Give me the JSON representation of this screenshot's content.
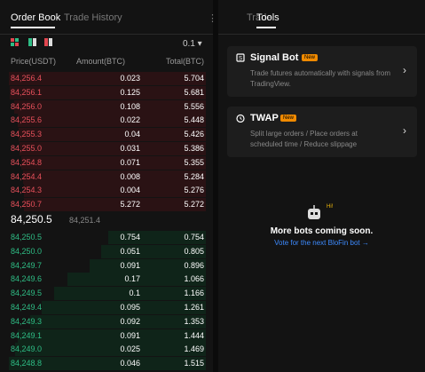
{
  "left": {
    "tabs": [
      "Order Book",
      "Trade History"
    ],
    "precision": "0.1",
    "headers": [
      "Price(USDT)",
      "Amount(BTC)",
      "Total(BTC)"
    ],
    "asks": [
      [
        "84,256.4",
        "0.023",
        "5.704"
      ],
      [
        "84,256.1",
        "0.125",
        "5.681"
      ],
      [
        "84,256.0",
        "0.108",
        "5.556"
      ],
      [
        "84,255.6",
        "0.022",
        "5.448"
      ],
      [
        "84,255.3",
        "0.04",
        "5.426"
      ],
      [
        "84,255.0",
        "0.031",
        "5.386"
      ],
      [
        "84,254.8",
        "0.071",
        "5.355"
      ],
      [
        "84,254.4",
        "0.008",
        "5.284"
      ],
      [
        "84,254.3",
        "0.004",
        "5.276"
      ],
      [
        "84,250.7",
        "5.272",
        "5.272"
      ]
    ],
    "mid": {
      "price": "84,250.5",
      "mark": "84,251.4"
    },
    "bids": [
      [
        "84,250.5",
        "0.754",
        "0.754"
      ],
      [
        "84,250.0",
        "0.051",
        "0.805"
      ],
      [
        "84,249.7",
        "0.091",
        "0.896"
      ],
      [
        "84,249.6",
        "0.17",
        "1.066"
      ],
      [
        "84,249.5",
        "0.1",
        "1.166"
      ],
      [
        "84,249.4",
        "0.095",
        "1.261"
      ],
      [
        "84,249.3",
        "0.092",
        "1.353"
      ],
      [
        "84,249.1",
        "0.091",
        "1.444"
      ],
      [
        "84,249.0",
        "0.025",
        "1.469"
      ],
      [
        "84,248.8",
        "0.046",
        "1.515"
      ]
    ]
  },
  "right": {
    "tabs": [
      "Trade",
      "Tools"
    ],
    "cards": [
      {
        "title": "Signal Bot",
        "badge": "New",
        "desc": "Trade futures automatically with signals from TradingView."
      },
      {
        "title": "TWAP",
        "badge": "New",
        "desc": "Split large orders / Place orders at scheduled time / Reduce slippage"
      }
    ],
    "empty": {
      "badge": "Hi!",
      "title": "More bots coming soon.",
      "link": "Vote for the next BloFin bot"
    }
  }
}
